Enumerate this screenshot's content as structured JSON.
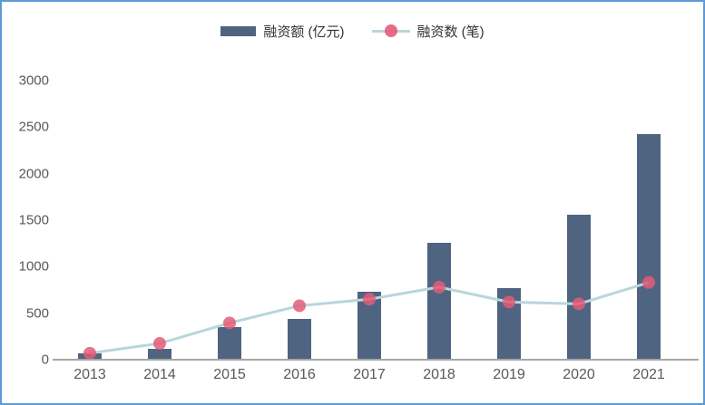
{
  "frame": {
    "border_color": "#5b9bd5",
    "background": "#ffffff"
  },
  "legend": {
    "position": "top-center",
    "items": [
      {
        "label": "融资额 (亿元)",
        "marker": "bar-swatch",
        "color": "#4e6480"
      },
      {
        "label": "融资数 (笔)",
        "marker": "line-dot-swatch",
        "line_color": "#b9d6da",
        "dot_color": "#e45b78"
      }
    ]
  },
  "chart_data": {
    "type": "bar+line combo",
    "title": "",
    "xlabel": "",
    "ylabel": "",
    "categories": [
      "2013",
      "2014",
      "2015",
      "2016",
      "2017",
      "2018",
      "2019",
      "2020",
      "2021"
    ],
    "series": [
      {
        "name": "融资额 (亿元)",
        "type": "bar",
        "color": "#4e6480",
        "values": [
          55,
          110,
          340,
          430,
          720,
          1250,
          760,
          1550,
          2420
        ]
      },
      {
        "name": "融资数 (笔)",
        "type": "line",
        "line_color": "#b9d6da",
        "marker_color": "#e45b78",
        "values": [
          70,
          175,
          395,
          580,
          650,
          780,
          620,
          600,
          830
        ]
      }
    ],
    "y_axis": {
      "min": 0,
      "max": 3000,
      "step": 500,
      "ticks": [
        0,
        500,
        1000,
        1500,
        2000,
        2500,
        3000
      ]
    },
    "grid": false,
    "legend_position": "top-center",
    "axis_line_color": "#a6a6a6",
    "tick_label_color": "#595959"
  }
}
